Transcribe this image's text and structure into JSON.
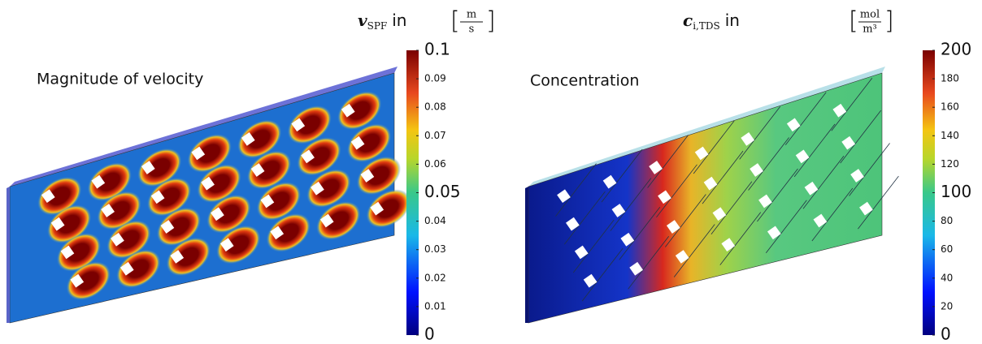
{
  "panels": [
    {
      "label": "Magnitude of velocity",
      "symbol": "v",
      "subscript": "SPF",
      "connector": "in",
      "unit_num": "m",
      "unit_den": "s",
      "colorbar": {
        "lim": [
          0,
          0.1
        ],
        "ticks": [
          0,
          0.01,
          0.02,
          0.03,
          0.04,
          0.05,
          0.06,
          0.07,
          0.08,
          0.09,
          0.1
        ]
      }
    },
    {
      "label": "Concentration",
      "symbol": "c",
      "subscript": "i,TDS",
      "connector": "in",
      "unit_num": "mol",
      "unit_den": "m³",
      "colorbar": {
        "lim": [
          0,
          200
        ],
        "ticks": [
          0,
          20,
          40,
          60,
          80,
          100,
          120,
          140,
          160,
          180,
          200
        ]
      }
    }
  ]
}
